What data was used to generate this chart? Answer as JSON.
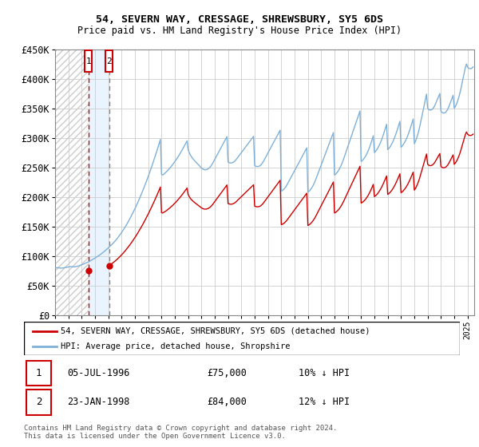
{
  "title1": "54, SEVERN WAY, CRESSAGE, SHREWSBURY, SY5 6DS",
  "title2": "Price paid vs. HM Land Registry's House Price Index (HPI)",
  "sale1_date": 1996.51,
  "sale1_price": 75000,
  "sale1_label": "1",
  "sale1_text": "05-JUL-1996",
  "sale1_amount": "£75,000",
  "sale1_hpi": "10% ↓ HPI",
  "sale2_date": 1998.07,
  "sale2_price": 84000,
  "sale2_label": "2",
  "sale2_text": "23-JAN-1998",
  "sale2_amount": "£84,000",
  "sale2_hpi": "12% ↓ HPI",
  "xmin": 1994.0,
  "xmax": 2025.5,
  "ymin": 0,
  "ymax": 450000,
  "yticks": [
    0,
    50000,
    100000,
    150000,
    200000,
    250000,
    300000,
    350000,
    400000,
    450000
  ],
  "ytick_labels": [
    "£0",
    "£50K",
    "£100K",
    "£150K",
    "£200K",
    "£250K",
    "£300K",
    "£350K",
    "£400K",
    "£450K"
  ],
  "legend_label1": "54, SEVERN WAY, CRESSAGE, SHREWSBURY, SY5 6DS (detached house)",
  "legend_label2": "HPI: Average price, detached house, Shropshire",
  "footer": "Contains HM Land Registry data © Crown copyright and database right 2024.\nThis data is licensed under the Open Government Licence v3.0.",
  "hpi_color": "#7fb0d8",
  "price_color": "#cc0000",
  "sale1_vline_color": "#cc0000",
  "sale2_vline_color": "#888888",
  "box_color": "#cc0000",
  "shade_color": "#ddeeff",
  "hpi_monthly": [
    80000,
    80200,
    80400,
    80100,
    79800,
    79500,
    79600,
    79800,
    80100,
    80400,
    80800,
    81200,
    81600,
    81900,
    82200,
    82000,
    81800,
    81600,
    81900,
    82300,
    82700,
    83200,
    83800,
    84500,
    85200,
    85900,
    86700,
    87500,
    88300,
    89100,
    90000,
    91000,
    92100,
    93200,
    94300,
    95400,
    96500,
    97700,
    98900,
    100100,
    101400,
    102800,
    104200,
    105700,
    107200,
    108800,
    110400,
    112000,
    113700,
    115500,
    117300,
    119200,
    121100,
    123100,
    125200,
    127400,
    129700,
    132100,
    134600,
    137200,
    139900,
    142700,
    145600,
    148600,
    151700,
    154900,
    158200,
    161600,
    165100,
    168700,
    172400,
    176200,
    180100,
    184100,
    188200,
    192400,
    196700,
    201100,
    205600,
    210200,
    214900,
    219700,
    224600,
    229600,
    234700,
    239900,
    245200,
    250600,
    256100,
    261700,
    267400,
    273200,
    279100,
    285100,
    291200,
    297400,
    238000,
    237000,
    238500,
    240000,
    241800,
    243700,
    245700,
    247800,
    250000,
    252300,
    254700,
    257200,
    259800,
    262500,
    265300,
    268200,
    271200,
    274300,
    277500,
    280800,
    284200,
    287700,
    291300,
    295000,
    280000,
    275000,
    271000,
    268000,
    265500,
    263000,
    261000,
    259000,
    257000,
    255000,
    253000,
    251000,
    249000,
    247500,
    246500,
    246000,
    246000,
    246500,
    247500,
    249000,
    251000,
    253500,
    256500,
    260000,
    263500,
    267000,
    270500,
    274000,
    277500,
    281000,
    284500,
    288000,
    291500,
    295000,
    298500,
    302000,
    259000,
    258000,
    257500,
    257500,
    258000,
    259000,
    260500,
    262500,
    265000,
    267500,
    270000,
    272500,
    275000,
    277500,
    280000,
    282500,
    285000,
    287500,
    290000,
    292500,
    295000,
    297500,
    300000,
    302500,
    253000,
    252000,
    251500,
    251500,
    252000,
    253000,
    255000,
    257500,
    260500,
    264000,
    267500,
    271000,
    274500,
    278000,
    281500,
    285000,
    288500,
    292000,
    295500,
    299000,
    302500,
    306000,
    309500,
    313000,
    210000,
    211000,
    212500,
    214500,
    217000,
    220000,
    223500,
    227000,
    230500,
    234000,
    237500,
    241000,
    244500,
    248000,
    251500,
    255000,
    258500,
    262000,
    265500,
    269000,
    272500,
    276000,
    279500,
    283000,
    208000,
    209500,
    211500,
    214000,
    217000,
    220500,
    224500,
    229000,
    234000,
    239000,
    244000,
    249000,
    254000,
    259000,
    264000,
    269000,
    274000,
    279000,
    284000,
    289000,
    294000,
    299000,
    304000,
    309000,
    237000,
    238500,
    240500,
    243000,
    246000,
    249500,
    253500,
    258000,
    263000,
    268500,
    274000,
    279500,
    285000,
    290500,
    296000,
    301500,
    307000,
    312500,
    318000,
    323500,
    329000,
    334500,
    340000,
    345500,
    260000,
    261500,
    263500,
    266000,
    269000,
    272500,
    276500,
    281000,
    286000,
    291500,
    297500,
    303500,
    275000,
    277000,
    279500,
    282500,
    286000,
    290000,
    294500,
    299500,
    305000,
    311000,
    317000,
    323000,
    280000,
    282000,
    284500,
    287500,
    291000,
    295000,
    299500,
    304500,
    310000,
    316000,
    322000,
    328000,
    284000,
    286000,
    288500,
    291500,
    295000,
    299000,
    303500,
    308500,
    314000,
    320000,
    326000,
    332000,
    290000,
    294000,
    299000,
    305000,
    312000,
    320000,
    329000,
    338000,
    347000,
    356000,
    365000,
    374000,
    350000,
    348000,
    347000,
    347000,
    348000,
    350000,
    353000,
    357000,
    361500,
    366000,
    370500,
    375000,
    345000,
    343000,
    342000,
    342000,
    343000,
    345000,
    348000,
    352000,
    357000,
    362000,
    367000,
    372000,
    350000,
    353000,
    357000,
    362000,
    368000,
    375000,
    383000,
    392000,
    401000,
    410000,
    419000,
    425000,
    420000,
    418000,
    417000,
    417000,
    418000,
    420000
  ]
}
